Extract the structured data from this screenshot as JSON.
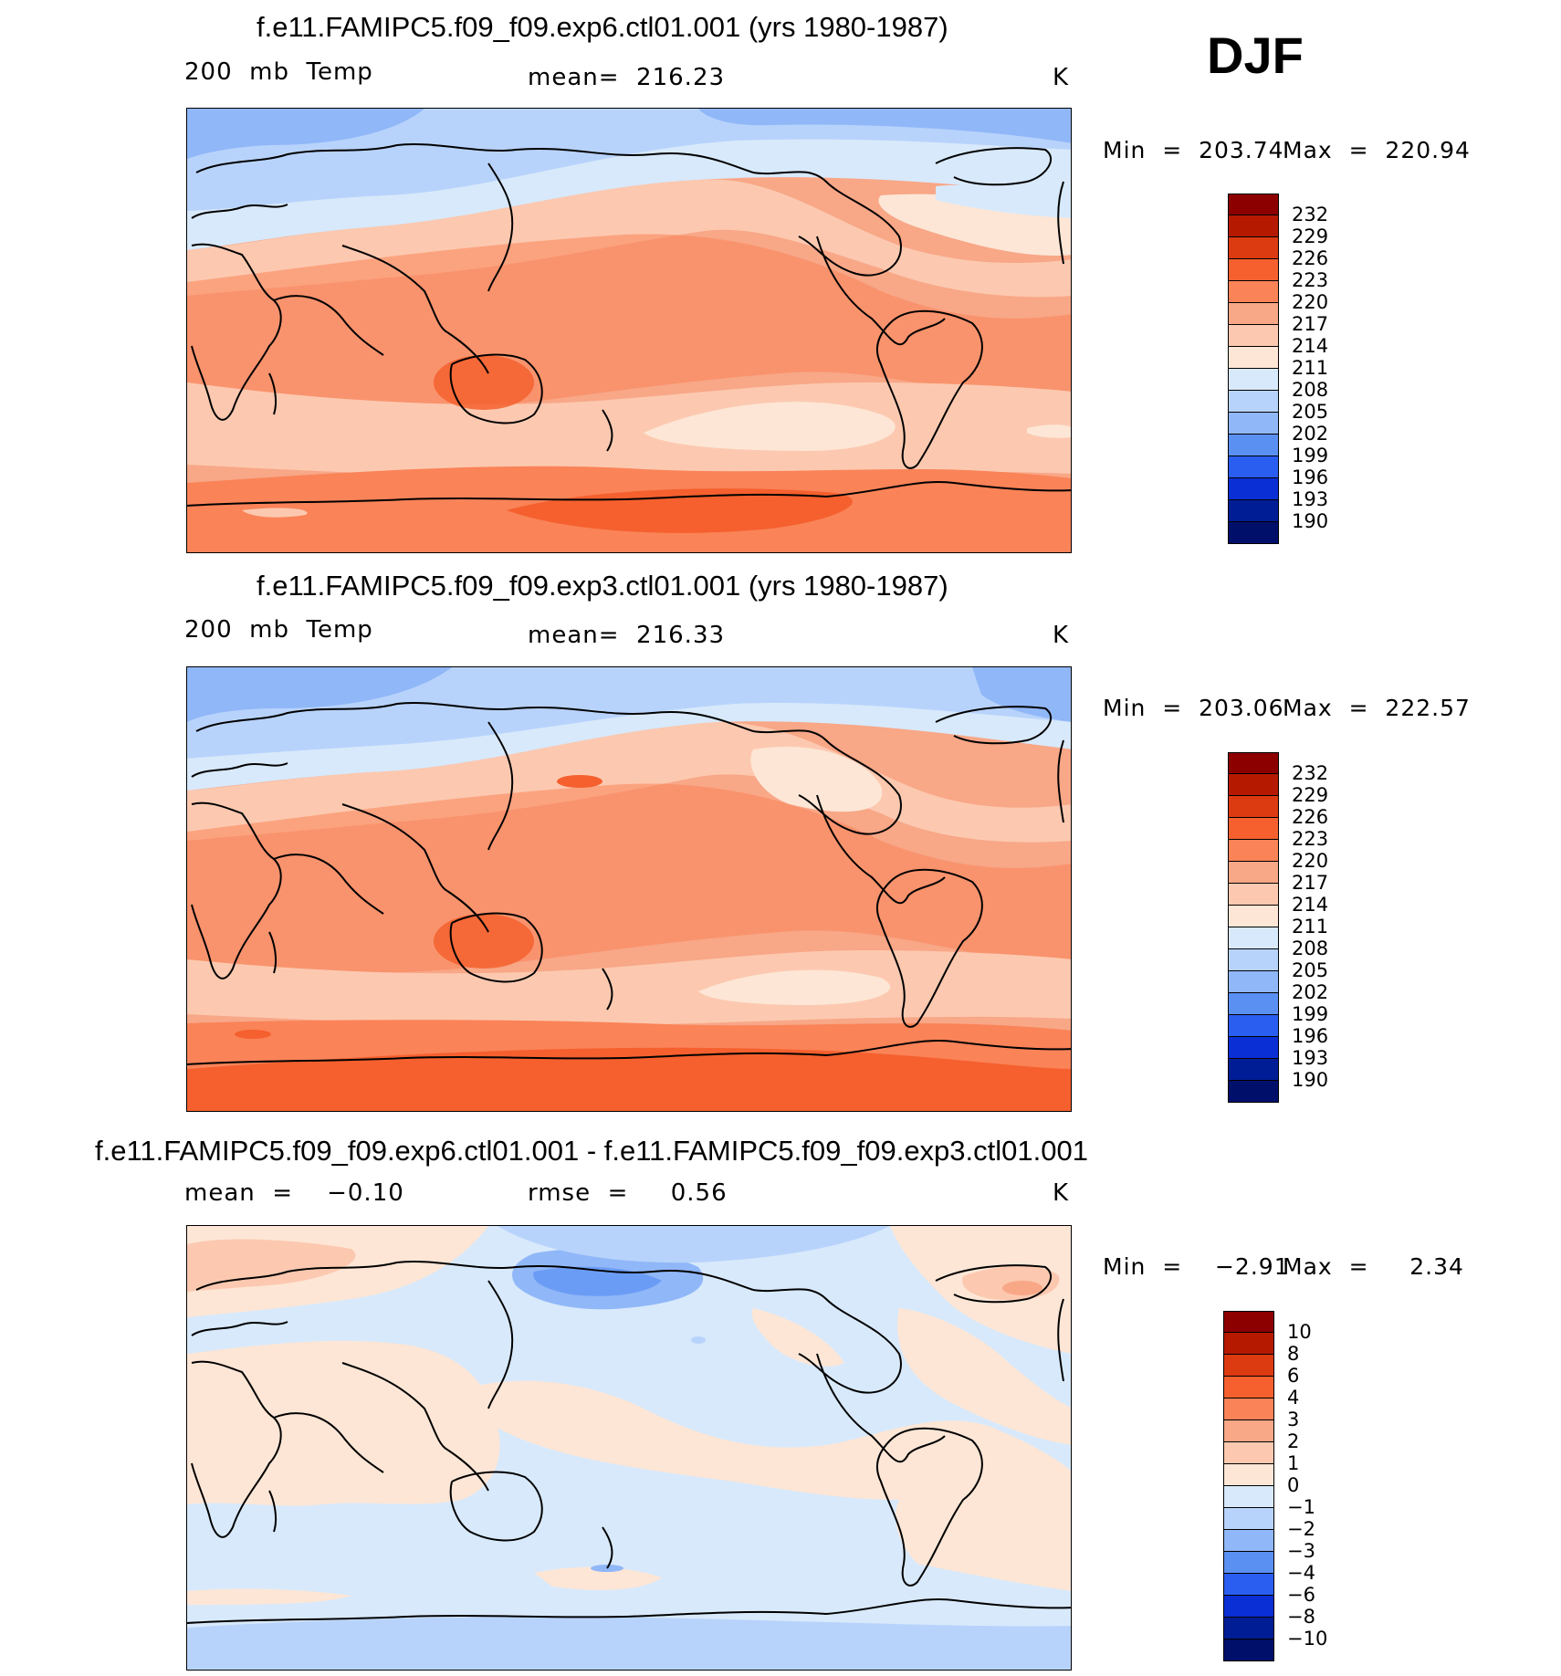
{
  "season": "DJF",
  "panels": [
    {
      "title": "f.e11.FAMIPC5.f09_f09.exp6.ctl01.001 (yrs 1980-1987)",
      "left_label": "200  mb  Temp",
      "center_label": "mean=  216.23",
      "units": "K",
      "min_label": "Min  =  203.74",
      "max_label": "Max  =  220.94",
      "colorbar": {
        "labels": [
          "232",
          "229",
          "226",
          "223",
          "220",
          "217",
          "214",
          "211",
          "208",
          "205",
          "202",
          "199",
          "196",
          "193",
          "190"
        ],
        "colors": [
          "#8c0000",
          "#b51a00",
          "#dc3a10",
          "#f5602e",
          "#fa8358",
          "#f8a787",
          "#fcc9b0",
          "#fde6d6",
          "#d8e9fb",
          "#b8d3fb",
          "#90b7f8",
          "#5b90f3",
          "#2a5ef0",
          "#0a2fd4",
          "#001d96",
          "#00106a"
        ]
      }
    },
    {
      "title": "f.e11.FAMIPC5.f09_f09.exp3.ctl01.001 (yrs 1980-1987)",
      "left_label": "200  mb  Temp",
      "center_label": "mean=  216.33",
      "units": "K",
      "min_label": "Min  =  203.06",
      "max_label": "Max  =  222.57",
      "colorbar": {
        "labels": [
          "232",
          "229",
          "226",
          "223",
          "220",
          "217",
          "214",
          "211",
          "208",
          "205",
          "202",
          "199",
          "196",
          "193",
          "190"
        ],
        "colors": [
          "#8c0000",
          "#b51a00",
          "#dc3a10",
          "#f5602e",
          "#fa8358",
          "#f8a787",
          "#fcc9b0",
          "#fde6d6",
          "#d8e9fb",
          "#b8d3fb",
          "#90b7f8",
          "#5b90f3",
          "#2a5ef0",
          "#0a2fd4",
          "#001d96",
          "#00106a"
        ]
      }
    },
    {
      "title": "f.e11.FAMIPC5.f09_f09.exp6.ctl01.001 - f.e11.FAMIPC5.f09_f09.exp3.ctl01.001",
      "left_label": "mean  =    −0.10",
      "center_label": "rmse  =     0.56",
      "units": "K",
      "min_label": "Min  =    −2.91",
      "max_label": "Max  =     2.34",
      "colorbar": {
        "labels": [
          "10",
          "8",
          "6",
          "4",
          "3",
          "2",
          "1",
          "0",
          "−1",
          "−2",
          "−3",
          "−4",
          "−6",
          "−8",
          "−10"
        ],
        "colors": [
          "#8c0000",
          "#b51a00",
          "#dc3a10",
          "#f5602e",
          "#fa8358",
          "#f8a787",
          "#fcc9b0",
          "#fde6d6",
          "#d8e9fb",
          "#b8d3fb",
          "#90b7f8",
          "#5b90f3",
          "#2a5ef0",
          "#0a2fd4",
          "#001d96",
          "#00106a"
        ]
      }
    }
  ]
}
